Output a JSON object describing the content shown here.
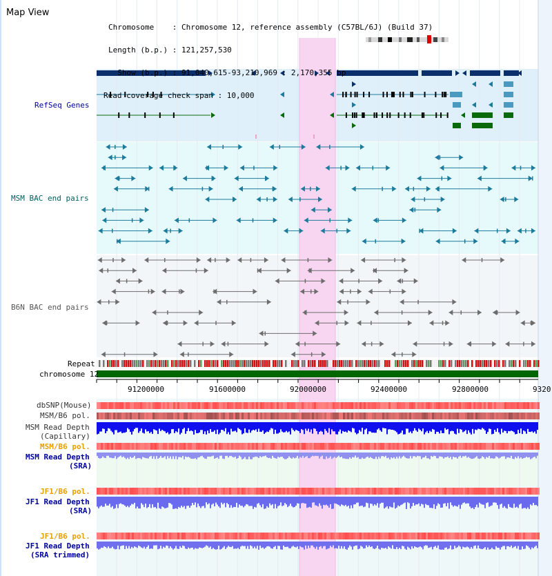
{
  "view_title": "Map View",
  "info": {
    "chromosome_line": "Chromosome    : Chromosome 12, reference assembly (C57BL/6J) (Build 37)",
    "length_line": "Length (b.p.) : 121,257,530",
    "show_line": "  Show (b.p.) : 91,040,615-93,210,969 : 2,170,355 bp",
    "coverage_line": "Read coverage check span : 10,000"
  },
  "tracks": {
    "refseq": "RefSeq Genes",
    "msm_bac": "MSM BAC end pairs",
    "b6n_bac": "B6N BAC end pairs",
    "repeat": "Repeat",
    "chromosome": "chromosome 12",
    "dbsnp": "dbSNP(Mouse)",
    "msm_b6_pol": "MSM/B6 pol.",
    "msm_depth_cap_1": "MSM Read Depth",
    "msm_depth_cap_2": "(Capillary)",
    "msm_b6_pol_sra": "MSM/B6 pol.",
    "msm_depth_sra_1": "MSM Read Depth",
    "msm_depth_sra_2": "(SRA)",
    "jf1_b6_pol": "JF1/B6 pol.",
    "jf1_depth_1": "JF1 Read Depth",
    "jf1_depth_2": "(SRA)",
    "jf1_b6_pol_2": "JF1/B6 pol.",
    "jf1_trim_1": "JF1 Read Depth",
    "jf1_trim_2": "(SRA trimmed)"
  },
  "axis_ticks": [
    "91200000",
    "91600000",
    "92000000",
    "92400000",
    "92800000",
    "9320"
  ],
  "colors": {
    "refseq_dark": "#0b2f6b",
    "refseq_teal": "#1c7a9a",
    "refseq_green": "#0a6a0a",
    "msm_label": "#006060",
    "b6n_label": "#444444",
    "orange_label": "#e8a000",
    "blue_label": "#0000a0",
    "highlight": "#f8d0f0",
    "chromosome": "#006600"
  }
}
